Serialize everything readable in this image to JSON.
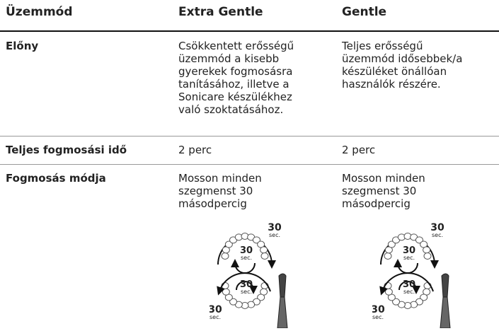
{
  "table": {
    "header": [
      "Üzemmód",
      "Extra Gentle",
      "Gentle"
    ],
    "rows": [
      {
        "label": "Előny",
        "cells": [
          [
            "Csökkentett erősségű",
            "üzemmód a kisebb",
            "gyerekek fogmosásra",
            "tanításához, illetve a",
            "Sonicare készülékhez",
            "való szoktatásához."
          ],
          [
            "Teljes erősségű",
            "üzemmód idősebbek/a",
            "készüléket önállóan",
            "használók részére."
          ]
        ]
      },
      {
        "label": "Teljes fogmosási idő",
        "cells": [
          [
            "2 perc"
          ],
          [
            "2 perc"
          ]
        ]
      },
      {
        "label": "Fogmosás módja",
        "cells": [
          [
            "Mosson minden",
            "szegmenst 30",
            "másodpercig"
          ],
          [
            "Mosson minden",
            "szegmenst 30",
            "másodpercig"
          ]
        ]
      }
    ],
    "illustration": {
      "number": "30",
      "unit": "sec."
    }
  }
}
